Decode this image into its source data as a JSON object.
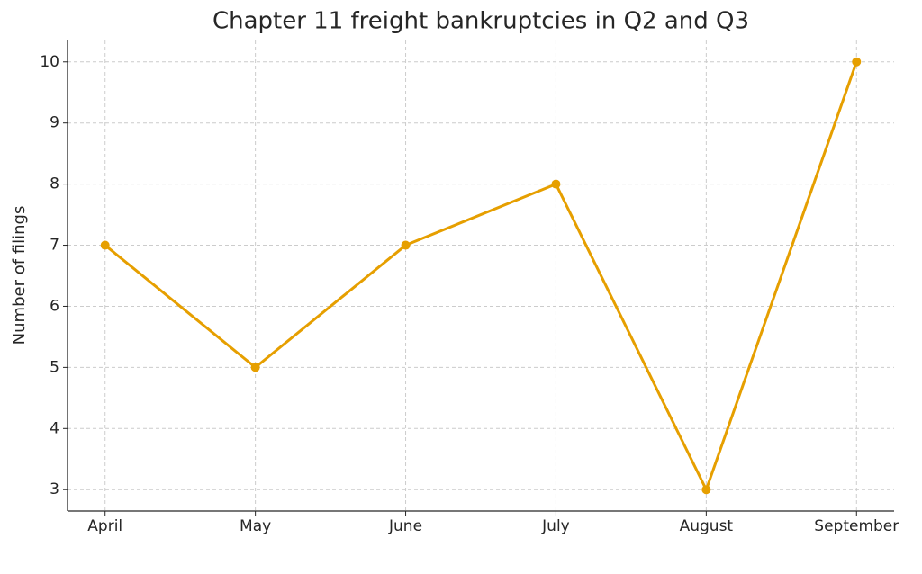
{
  "chart_data": {
    "type": "line",
    "title": "Chapter 11 freight bankruptcies in Q2 and Q3",
    "y_label": "Number of filings",
    "categories": [
      "April",
      "May",
      "June",
      "July",
      "August",
      "September"
    ],
    "values": [
      7,
      5,
      7,
      8,
      3,
      10
    ],
    "color": "#e69f00",
    "ylim": [
      2.65,
      10.35
    ],
    "yticks": [
      3,
      4,
      5,
      6,
      7,
      8,
      9,
      10
    ],
    "grid": true
  }
}
